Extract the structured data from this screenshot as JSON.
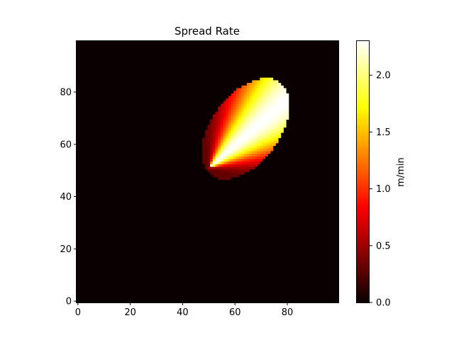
{
  "chart_data": {
    "type": "heatmap",
    "title": "Spread Rate",
    "xlabel": "",
    "ylabel": "",
    "colorbar_label": "m/min",
    "colormap": "hot",
    "grid": false,
    "xlim": [
      0,
      100
    ],
    "ylim": [
      0,
      100
    ],
    "vlim": [
      0,
      2.3
    ],
    "x_ticks": [
      0,
      20,
      40,
      60,
      80
    ],
    "y_ticks": [
      0,
      20,
      40,
      60,
      80
    ],
    "x_tick_labels": [
      "0",
      "20",
      "40",
      "60",
      "80"
    ],
    "y_tick_labels": [
      "0",
      "20",
      "40",
      "60",
      "80"
    ],
    "colorbar_ticks": [
      0.0,
      0.5,
      1.0,
      1.5,
      2.0
    ],
    "colorbar_tick_labels": [
      "0.0",
      "0.5",
      "1.0",
      "1.5",
      "2.0"
    ],
    "grid_size": [
      100,
      100
    ],
    "background_value": 0.0,
    "burn_region": {
      "shape": "ellipse",
      "ignition_point": [
        50,
        51
      ],
      "center": [
        64,
        66
      ],
      "semi_axes": [
        22,
        13
      ],
      "rotation_deg": 53,
      "max_value": 2.3,
      "peak_direction_deg": 41,
      "min_edge_value": 0.3
    }
  },
  "colors": {
    "background": "#ffffff",
    "axis": "#000000"
  }
}
